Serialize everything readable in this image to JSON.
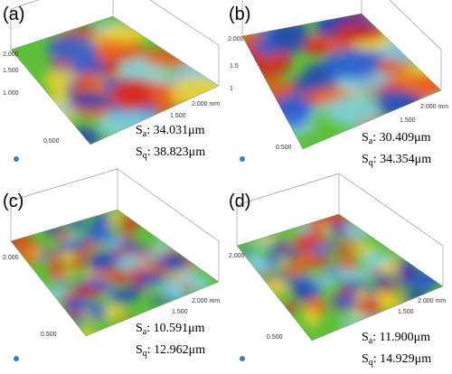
{
  "panels": [
    {
      "label": "(a)",
      "sa": {
        "symbol": "S",
        "sub": "a",
        "value": ": 34.031μm"
      },
      "sq": {
        "symbol": "S",
        "sub": "q",
        "value": ": 38.823μm"
      },
      "ticks": [
        "2.000",
        "1.500",
        "1.000",
        "0.500",
        "1.500",
        "2.000 mm"
      ]
    },
    {
      "label": "(b)",
      "sa": {
        "symbol": "S",
        "sub": "a",
        "value": ": 30.409μm"
      },
      "sq": {
        "symbol": "S",
        "sub": "q",
        "value": ": 34.354μm"
      },
      "ticks": [
        "2.000",
        "1.5",
        "1",
        "0.500",
        "1.500",
        "2.000 mm"
      ]
    },
    {
      "label": "(c)",
      "sa": {
        "symbol": "S",
        "sub": "a",
        "value": ": 10.591μm"
      },
      "sq": {
        "symbol": "S",
        "sub": "q",
        "value": ": 12.962μm"
      },
      "ticks": [
        "2.000",
        "0.500",
        "1.500",
        "2.000 mm"
      ]
    },
    {
      "label": "(d)",
      "sa": {
        "symbol": "S",
        "sub": "a",
        "value": ": 11.900μm"
      },
      "sq": {
        "symbol": "S",
        "sub": "q",
        "value": ": 14.929μm"
      },
      "ticks": [
        "2.000",
        "0.500",
        "1.500",
        "2.000 mm"
      ]
    }
  ]
}
